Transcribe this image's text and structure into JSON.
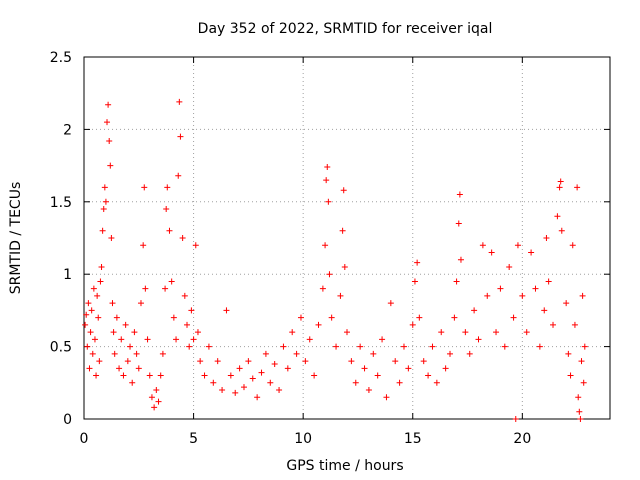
{
  "chart_data": {
    "type": "scatter",
    "title": "Day 352 of 2022, SRMTID for receiver iqal",
    "xlabel": "GPS time / hours",
    "ylabel": "SRMTID / TECUs",
    "xlim": [
      0,
      24
    ],
    "ylim": [
      0,
      2.5
    ],
    "x_ticks": [
      0,
      5,
      10,
      15,
      20
    ],
    "x_tick_labels": [
      "0",
      "5",
      "10",
      "15",
      "20"
    ],
    "y_ticks": [
      0,
      0.5,
      1,
      1.5,
      2,
      2.5
    ],
    "y_tick_labels": [
      "0",
      "0.5",
      "1",
      "1.5",
      "2",
      "2.5"
    ],
    "grid": true,
    "marker": "+",
    "color": "#ff0000",
    "series": [
      {
        "name": "SRMTID",
        "points": [
          [
            0.05,
            0.65
          ],
          [
            0.1,
            0.72
          ],
          [
            0.15,
            0.5
          ],
          [
            0.2,
            0.8
          ],
          [
            0.25,
            0.35
          ],
          [
            0.3,
            0.6
          ],
          [
            0.35,
            0.75
          ],
          [
            0.4,
            0.45
          ],
          [
            0.45,
            0.9
          ],
          [
            0.5,
            0.55
          ],
          [
            0.55,
            0.3
          ],
          [
            0.6,
            0.85
          ],
          [
            0.65,
            0.7
          ],
          [
            0.7,
            0.4
          ],
          [
            0.75,
            0.95
          ],
          [
            0.8,
            1.05
          ],
          [
            0.85,
            1.3
          ],
          [
            0.9,
            1.45
          ],
          [
            0.95,
            1.6
          ],
          [
            1.0,
            1.5
          ],
          [
            1.05,
            2.05
          ],
          [
            1.1,
            2.17
          ],
          [
            1.15,
            1.92
          ],
          [
            1.2,
            1.75
          ],
          [
            1.25,
            1.25
          ],
          [
            1.3,
            0.8
          ],
          [
            1.35,
            0.6
          ],
          [
            1.4,
            0.45
          ],
          [
            1.5,
            0.7
          ],
          [
            1.6,
            0.35
          ],
          [
            1.7,
            0.55
          ],
          [
            1.8,
            0.3
          ],
          [
            1.9,
            0.65
          ],
          [
            2.0,
            0.4
          ],
          [
            2.1,
            0.5
          ],
          [
            2.2,
            0.25
          ],
          [
            2.3,
            0.6
          ],
          [
            2.4,
            0.45
          ],
          [
            2.5,
            0.35
          ],
          [
            2.6,
            0.8
          ],
          [
            2.7,
            1.2
          ],
          [
            2.75,
            1.6
          ],
          [
            2.8,
            0.9
          ],
          [
            2.9,
            0.55
          ],
          [
            3.0,
            0.3
          ],
          [
            3.1,
            0.15
          ],
          [
            3.2,
            0.08
          ],
          [
            3.3,
            0.2
          ],
          [
            3.4,
            0.12
          ],
          [
            3.5,
            0.3
          ],
          [
            3.6,
            0.45
          ],
          [
            3.7,
            0.9
          ],
          [
            3.75,
            1.45
          ],
          [
            3.8,
            1.6
          ],
          [
            3.9,
            1.3
          ],
          [
            4.0,
            0.95
          ],
          [
            4.1,
            0.7
          ],
          [
            4.2,
            0.55
          ],
          [
            4.3,
            1.68
          ],
          [
            4.35,
            2.19
          ],
          [
            4.4,
            1.95
          ],
          [
            4.5,
            1.25
          ],
          [
            4.6,
            0.85
          ],
          [
            4.7,
            0.65
          ],
          [
            4.8,
            0.5
          ],
          [
            4.9,
            0.75
          ],
          [
            5.0,
            0.55
          ],
          [
            5.1,
            1.2
          ],
          [
            5.2,
            0.6
          ],
          [
            5.3,
            0.4
          ],
          [
            5.5,
            0.3
          ],
          [
            5.7,
            0.5
          ],
          [
            5.9,
            0.25
          ],
          [
            6.1,
            0.4
          ],
          [
            6.3,
            0.2
          ],
          [
            6.5,
            0.75
          ],
          [
            6.7,
            0.3
          ],
          [
            6.9,
            0.18
          ],
          [
            7.1,
            0.35
          ],
          [
            7.3,
            0.22
          ],
          [
            7.5,
            0.4
          ],
          [
            7.7,
            0.28
          ],
          [
            7.9,
            0.15
          ],
          [
            8.1,
            0.32
          ],
          [
            8.3,
            0.45
          ],
          [
            8.5,
            0.25
          ],
          [
            8.7,
            0.38
          ],
          [
            8.9,
            0.2
          ],
          [
            9.1,
            0.5
          ],
          [
            9.3,
            0.35
          ],
          [
            9.5,
            0.6
          ],
          [
            9.7,
            0.45
          ],
          [
            9.9,
            0.7
          ],
          [
            10.1,
            0.4
          ],
          [
            10.3,
            0.55
          ],
          [
            10.5,
            0.3
          ],
          [
            10.7,
            0.65
          ],
          [
            10.9,
            0.9
          ],
          [
            11.0,
            1.2
          ],
          [
            11.05,
            1.65
          ],
          [
            11.1,
            1.74
          ],
          [
            11.15,
            1.5
          ],
          [
            11.2,
            1.0
          ],
          [
            11.3,
            0.7
          ],
          [
            11.5,
            0.5
          ],
          [
            11.7,
            0.85
          ],
          [
            11.8,
            1.3
          ],
          [
            11.85,
            1.58
          ],
          [
            11.9,
            1.05
          ],
          [
            12.0,
            0.6
          ],
          [
            12.2,
            0.4
          ],
          [
            12.4,
            0.25
          ],
          [
            12.6,
            0.5
          ],
          [
            12.8,
            0.35
          ],
          [
            13.0,
            0.2
          ],
          [
            13.2,
            0.45
          ],
          [
            13.4,
            0.3
          ],
          [
            13.6,
            0.55
          ],
          [
            13.8,
            0.15
          ],
          [
            14.0,
            0.8
          ],
          [
            14.2,
            0.4
          ],
          [
            14.4,
            0.25
          ],
          [
            14.6,
            0.5
          ],
          [
            14.8,
            0.35
          ],
          [
            15.0,
            0.65
          ],
          [
            15.1,
            0.95
          ],
          [
            15.2,
            1.08
          ],
          [
            15.3,
            0.7
          ],
          [
            15.5,
            0.4
          ],
          [
            15.7,
            0.3
          ],
          [
            15.9,
            0.5
          ],
          [
            16.1,
            0.25
          ],
          [
            16.3,
            0.6
          ],
          [
            16.5,
            0.35
          ],
          [
            16.7,
            0.45
          ],
          [
            16.9,
            0.7
          ],
          [
            17.0,
            0.95
          ],
          [
            17.1,
            1.35
          ],
          [
            17.15,
            1.55
          ],
          [
            17.2,
            1.1
          ],
          [
            17.4,
            0.6
          ],
          [
            17.6,
            0.45
          ],
          [
            17.8,
            0.75
          ],
          [
            18.0,
            0.55
          ],
          [
            18.2,
            1.2
          ],
          [
            18.4,
            0.85
          ],
          [
            18.6,
            1.15
          ],
          [
            18.8,
            0.6
          ],
          [
            19.0,
            0.9
          ],
          [
            19.2,
            0.5
          ],
          [
            19.4,
            1.05
          ],
          [
            19.6,
            0.7
          ],
          [
            19.7,
            0.0
          ],
          [
            19.8,
            1.2
          ],
          [
            20.0,
            0.85
          ],
          [
            20.2,
            0.6
          ],
          [
            20.4,
            1.15
          ],
          [
            20.6,
            0.9
          ],
          [
            20.8,
            0.5
          ],
          [
            21.0,
            0.75
          ],
          [
            21.1,
            1.25
          ],
          [
            21.2,
            0.95
          ],
          [
            21.4,
            0.65
          ],
          [
            21.6,
            1.4
          ],
          [
            21.7,
            1.6
          ],
          [
            21.75,
            1.64
          ],
          [
            21.8,
            1.3
          ],
          [
            22.0,
            0.8
          ],
          [
            22.1,
            0.45
          ],
          [
            22.2,
            0.3
          ],
          [
            22.3,
            1.2
          ],
          [
            22.4,
            0.65
          ],
          [
            22.5,
            1.6
          ],
          [
            22.55,
            0.15
          ],
          [
            22.6,
            0.05
          ],
          [
            22.65,
            0.0
          ],
          [
            22.7,
            0.4
          ],
          [
            22.75,
            0.85
          ],
          [
            22.8,
            0.25
          ],
          [
            22.85,
            0.5
          ]
        ]
      }
    ]
  }
}
